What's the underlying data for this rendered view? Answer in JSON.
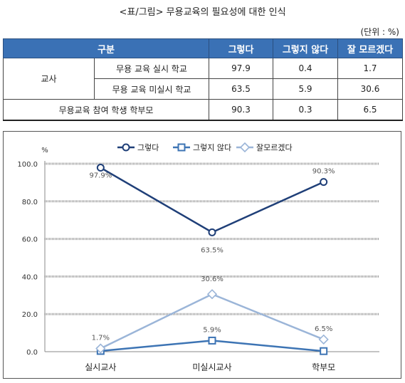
{
  "title": "<표/그림> 무용교육의 필요성에 대한 인식",
  "unit_note": "(단위 : %)",
  "table": {
    "headers": [
      "구분",
      "그렇다",
      "그렇지 않다",
      "잘 모르겠다"
    ],
    "group_label": "교사",
    "rows": [
      {
        "label": "무용 교육 실시 학교",
        "values": [
          "97.9",
          "0.4",
          "1.7"
        ]
      },
      {
        "label": "무용 교육 미실시 학교",
        "values": [
          "63.5",
          "5.9",
          "30.6"
        ]
      },
      {
        "label": "무용교육 참여 학생 학부모",
        "values": [
          "90.3",
          "0.3",
          "6.5"
        ]
      }
    ]
  },
  "chart_data": {
    "type": "line",
    "ylabel": "%",
    "ylim": [
      0,
      100
    ],
    "yticks": [
      "0.0",
      "20.0",
      "40.0",
      "60.0",
      "80.0",
      "100.0"
    ],
    "categories": [
      "실시교사",
      "미실시교사",
      "학부모"
    ],
    "grid": true,
    "legend_position": "top",
    "series": [
      {
        "name": "그렇다",
        "values": [
          97.9,
          63.5,
          90.3
        ],
        "labels": [
          "97.9%",
          "63.5%",
          "90.3%"
        ],
        "color": "#1f3f78",
        "marker": "circle"
      },
      {
        "name": "그렇지 않다",
        "values": [
          0.4,
          5.9,
          0.3
        ],
        "labels": [
          "",
          "5.9%",
          ""
        ],
        "color": "#3d74b4",
        "marker": "square"
      },
      {
        "name": "잘모르겠다",
        "values": [
          1.7,
          30.6,
          6.5
        ],
        "labels": [
          "1.7%",
          "30.6%",
          "6.5%"
        ],
        "color": "#9bb5d8",
        "marker": "diamond"
      }
    ]
  }
}
